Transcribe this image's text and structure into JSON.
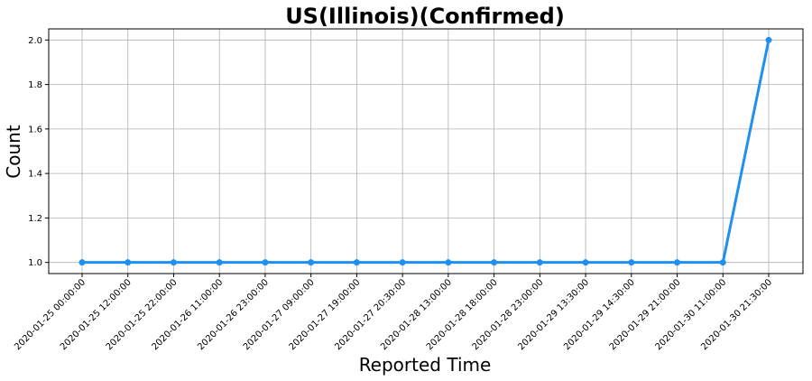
{
  "chart_data": {
    "type": "line",
    "title": "US(Illinois)(Confirmed)",
    "xlabel": "Reported Time",
    "ylabel": "Count",
    "categories": [
      "2020-01-25 00:00:00",
      "2020-01-25 12:00:00",
      "2020-01-25 22:00:00",
      "2020-01-26 11:00:00",
      "2020-01-26 23:00:00",
      "2020-01-27 09:00:00",
      "2020-01-27 19:00:00",
      "2020-01-27 20:30:00",
      "2020-01-28 13:00:00",
      "2020-01-28 18:00:00",
      "2020-01-28 23:00:00",
      "2020-01-29 13:30:00",
      "2020-01-29 14:30:00",
      "2020-01-29 21:00:00",
      "2020-01-30 11:00:00",
      "2020-01-30 21:30:00"
    ],
    "values": [
      1,
      1,
      1,
      1,
      1,
      1,
      1,
      1,
      1,
      1,
      1,
      1,
      1,
      1,
      1,
      2
    ],
    "yticks": [
      "1.0",
      "1.2",
      "1.4",
      "1.6",
      "1.8",
      "2.0"
    ],
    "ylim": [
      0.95,
      2.05
    ],
    "grid": true,
    "color": "#1e90f0"
  }
}
